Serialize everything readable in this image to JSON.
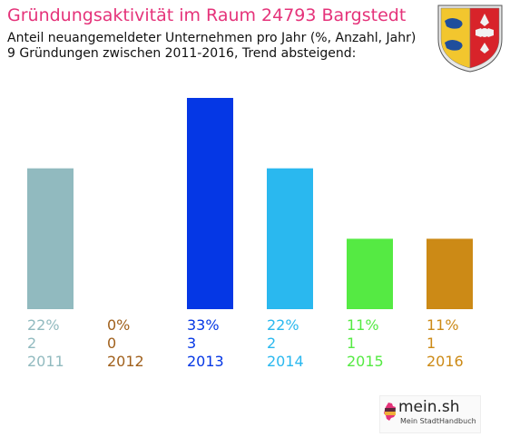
{
  "header": {
    "title": "Gründungsaktivität im Raum 24793 Bargstedt",
    "subtitle_line1": "Anteil neuangemeldeter Unternehmen pro Jahr (%, Anzahl, Jahr)",
    "subtitle_line2": "9 Gründungen zwischen 2011-2016, Trend absteigend:"
  },
  "emblem": {
    "icon": "schleswig-holstein-coat-of-arms-icon"
  },
  "footer": {
    "logo_text": "mein.sh",
    "logo_sub": "Mein StadtHandbuch",
    "icon": "germany-map-icon"
  },
  "chart_data": {
    "type": "bar",
    "categories": [
      "2011",
      "2012",
      "2013",
      "2014",
      "2015",
      "2016"
    ],
    "percent_labels": [
      "22%",
      "0%",
      "33%",
      "22%",
      "11%",
      "11%"
    ],
    "count_labels": [
      "2",
      "0",
      "3",
      "2",
      "1",
      "1"
    ],
    "values": [
      22,
      0,
      33,
      22,
      11,
      11
    ],
    "colors": [
      "#91babf",
      "#a0601c",
      "#0537e5",
      "#2ab8ef",
      "#55ea43",
      "#cc8a16"
    ],
    "ylim": [
      0,
      33
    ]
  }
}
